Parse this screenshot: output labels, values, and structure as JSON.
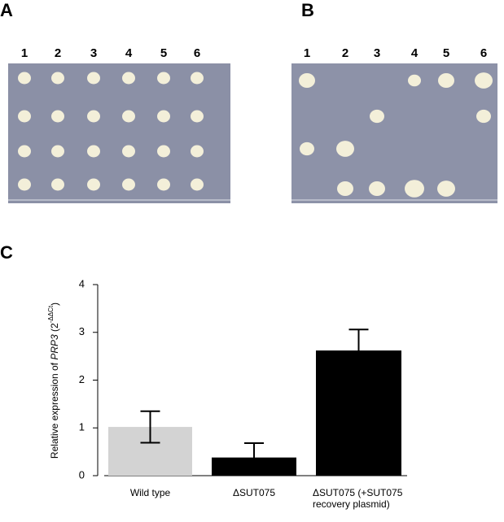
{
  "panels": {
    "A": "A",
    "B": "B",
    "C": "C"
  },
  "plate_columns": [
    "1",
    "2",
    "3",
    "4",
    "5",
    "6"
  ],
  "chart_data": {
    "type": "bar",
    "ylabel": [
      "Relative expression of ",
      "PRP3",
      " (2",
      "-ΔΔCt",
      ")"
    ],
    "categories": [
      [
        "Wild type"
      ],
      [
        "ΔSUT075"
      ],
      [
        "ΔSUT075 (+SUT075",
        "recovery plasmid)"
      ]
    ],
    "values": [
      1.02,
      0.38,
      2.62
    ],
    "errors": [
      0.33,
      0.3,
      0.44
    ],
    "colors": [
      "#d3d3d3",
      "#000000",
      "#000000"
    ],
    "ylim": [
      0,
      4
    ],
    "yticks": [
      0,
      1,
      2,
      3,
      4
    ]
  }
}
